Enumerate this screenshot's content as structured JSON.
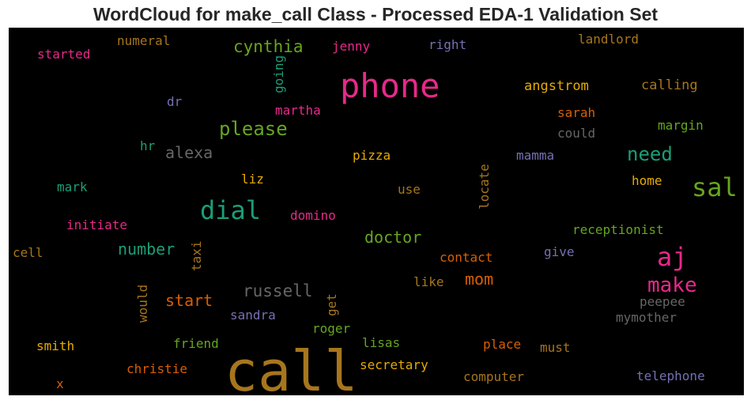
{
  "chart_data": {
    "type": "wordcloud",
    "title": "WordCloud for make_call Class - Processed EDA-1 Validation Set",
    "background": "#000000",
    "words": [
      {
        "text": "call",
        "color": "#a6761d"
      },
      {
        "text": "phone",
        "color": "#e7298a"
      },
      {
        "text": "sal",
        "color": "#66a61e"
      },
      {
        "text": "aj",
        "color": "#e7298a"
      },
      {
        "text": "dial",
        "color": "#1b9e77"
      },
      {
        "text": "make",
        "color": "#e7298a"
      },
      {
        "text": "please",
        "color": "#66a61e"
      },
      {
        "text": "need",
        "color": "#1b9e77"
      },
      {
        "text": "cynthia",
        "color": "#66a61e"
      },
      {
        "text": "russell",
        "color": "#666666"
      },
      {
        "text": "alexa",
        "color": "#666666"
      },
      {
        "text": "doctor",
        "color": "#66a61e"
      },
      {
        "text": "number",
        "color": "#1b9e77"
      },
      {
        "text": "start",
        "color": "#d95f02"
      },
      {
        "text": "mom",
        "color": "#d95f02"
      },
      {
        "text": "angstrom",
        "color": "#e6ab02"
      },
      {
        "text": "calling",
        "color": "#a6761d"
      },
      {
        "text": "started",
        "color": "#e7298a"
      },
      {
        "text": "numeral",
        "color": "#a6761d"
      },
      {
        "text": "jenny",
        "color": "#e7298a"
      },
      {
        "text": "right",
        "color": "#7570b3"
      },
      {
        "text": "landlord",
        "color": "#a6761d"
      },
      {
        "text": "going",
        "color": "#1b9e77"
      },
      {
        "text": "martha",
        "color": "#e7298a"
      },
      {
        "text": "dr",
        "color": "#7570b3"
      },
      {
        "text": "sarah",
        "color": "#d95f02"
      },
      {
        "text": "could",
        "color": "#666666"
      },
      {
        "text": "margin",
        "color": "#66a61e"
      },
      {
        "text": "hr",
        "color": "#1b9e77"
      },
      {
        "text": "pizza",
        "color": "#e6ab02"
      },
      {
        "text": "mamma",
        "color": "#7570b3"
      },
      {
        "text": "home",
        "color": "#e6ab02"
      },
      {
        "text": "mark",
        "color": "#1b9e77"
      },
      {
        "text": "liz",
        "color": "#e6ab02"
      },
      {
        "text": "use",
        "color": "#a6761d"
      },
      {
        "text": "locate",
        "color": "#a6761d"
      },
      {
        "text": "initiate",
        "color": "#e7298a"
      },
      {
        "text": "domino",
        "color": "#e7298a"
      },
      {
        "text": "receptionist",
        "color": "#66a61e"
      },
      {
        "text": "cell",
        "color": "#a6761d"
      },
      {
        "text": "taxi",
        "color": "#a6761d"
      },
      {
        "text": "contact",
        "color": "#d95f02"
      },
      {
        "text": "give",
        "color": "#7570b3"
      },
      {
        "text": "would",
        "color": "#a6761d"
      },
      {
        "text": "like",
        "color": "#a6761d"
      },
      {
        "text": "get",
        "color": "#a6761d"
      },
      {
        "text": "peepee",
        "color": "#666666"
      },
      {
        "text": "sandra",
        "color": "#7570b3"
      },
      {
        "text": "mymother",
        "color": "#666666"
      },
      {
        "text": "roger",
        "color": "#66a61e"
      },
      {
        "text": "smith",
        "color": "#e6ab02"
      },
      {
        "text": "friend",
        "color": "#66a61e"
      },
      {
        "text": "lisas",
        "color": "#66a61e"
      },
      {
        "text": "place",
        "color": "#d95f02"
      },
      {
        "text": "must",
        "color": "#a6761d"
      },
      {
        "text": "secretary",
        "color": "#e6ab02"
      },
      {
        "text": "christie",
        "color": "#d95f02"
      },
      {
        "text": "x",
        "color": "#d95f02"
      },
      {
        "text": "computer",
        "color": "#a6761d"
      },
      {
        "text": "telephone",
        "color": "#7570b3"
      }
    ]
  }
}
